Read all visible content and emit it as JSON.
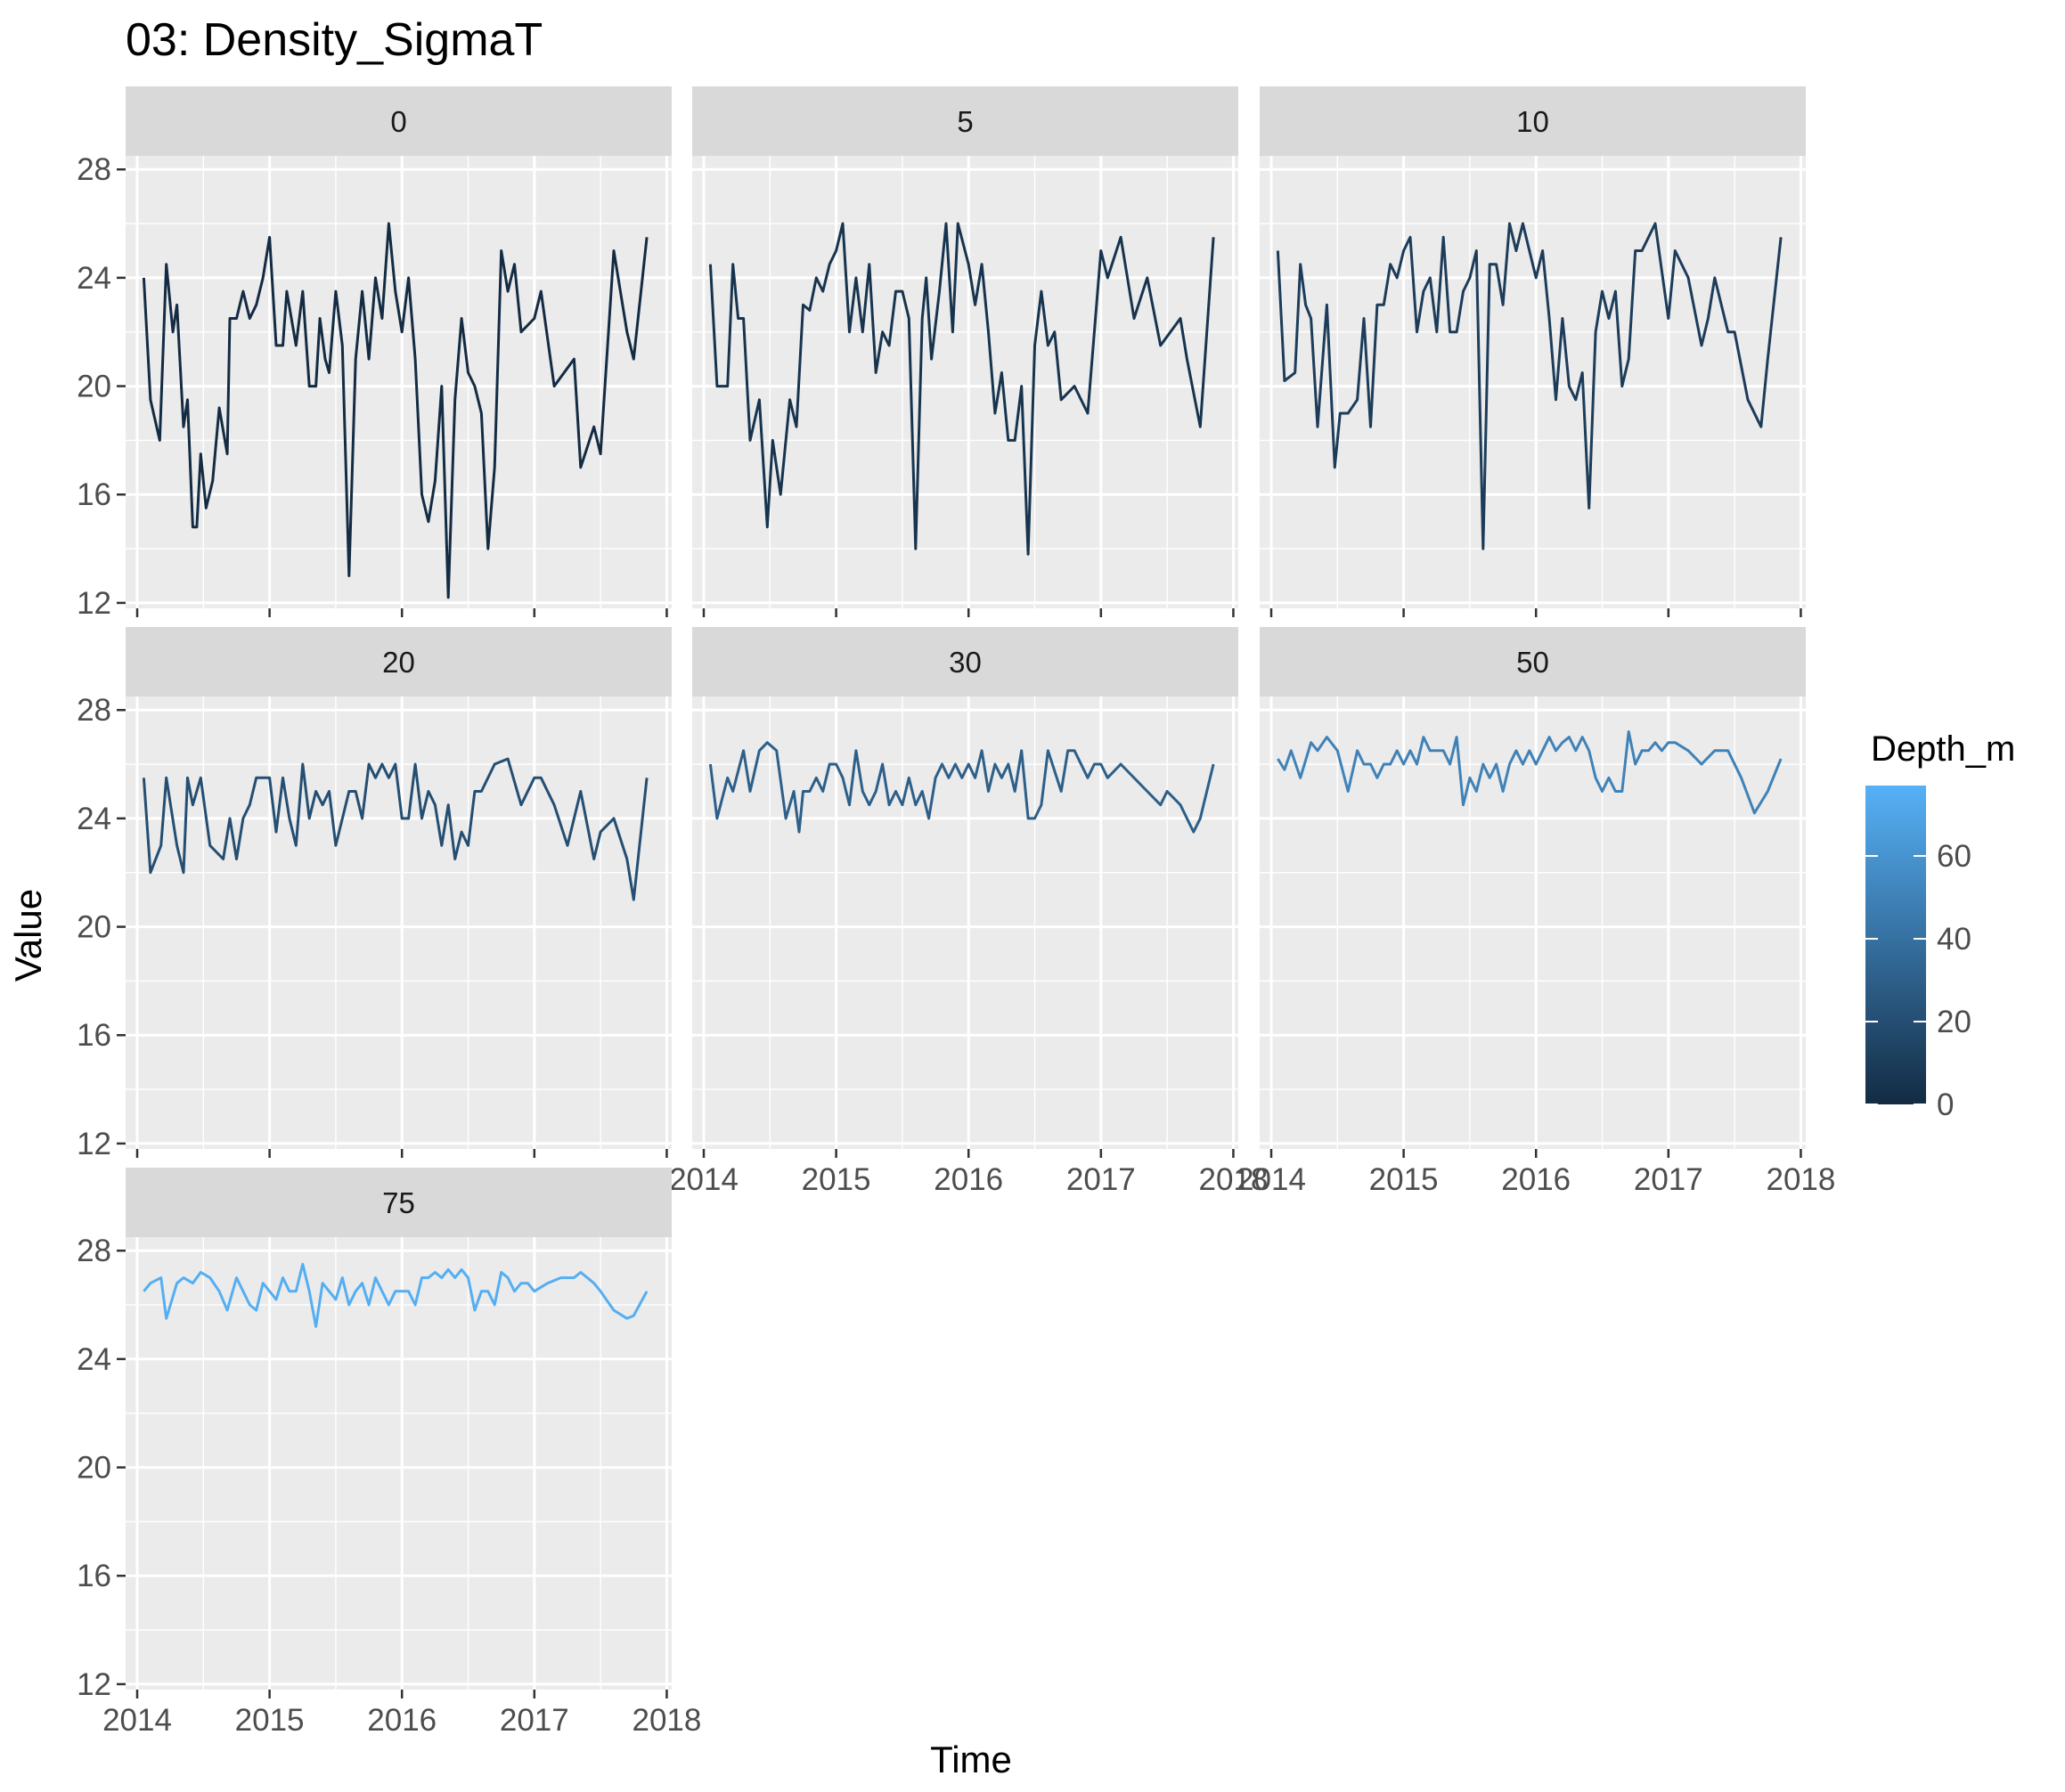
{
  "chart_data": {
    "type": "line",
    "title": "03: Density_SigmaT",
    "xlabel": "Time",
    "ylabel": "Value",
    "xlim": [
      2014.0,
      2017.95
    ],
    "ylim": [
      11.8,
      28.5
    ],
    "x_ticks": [
      2014,
      2015,
      2016,
      2017,
      2018
    ],
    "x_tick_labels": [
      "2014",
      "2015",
      "2016",
      "2017",
      "2018"
    ],
    "y_ticks": [
      12,
      16,
      20,
      24,
      28
    ],
    "y_tick_labels": [
      "12",
      "16",
      "20",
      "24",
      "28"
    ],
    "grid": true,
    "facet_variable": "Depth_m",
    "legend": {
      "title": "Depth_m",
      "type": "colorbar",
      "placement": "right",
      "range": [
        0,
        77
      ],
      "breaks": [
        0,
        20,
        40,
        60
      ],
      "break_labels": [
        "0",
        "20",
        "40",
        "60"
      ],
      "color_low": "#132b43",
      "color_high": "#56b1f7"
    },
    "panels": [
      {
        "label": "0",
        "depth": 0,
        "x": [
          2014.05,
          2014.1,
          2014.17,
          2014.22,
          2014.27,
          2014.3,
          2014.35,
          2014.38,
          2014.42,
          2014.45,
          2014.48,
          2014.52,
          2014.57,
          2014.62,
          2014.68,
          2014.7,
          2014.75,
          2014.8,
          2014.85,
          2014.9,
          2014.95,
          2015.0,
          2015.05,
          2015.1,
          2015.13,
          2015.2,
          2015.25,
          2015.3,
          2015.35,
          2015.38,
          2015.42,
          2015.45,
          2015.5,
          2015.55,
          2015.6,
          2015.65,
          2015.7,
          2015.75,
          2015.8,
          2015.85,
          2015.9,
          2015.95,
          2016.0,
          2016.05,
          2016.1,
          2016.15,
          2016.2,
          2016.25,
          2016.3,
          2016.35,
          2016.4,
          2016.45,
          2016.5,
          2016.55,
          2016.6,
          2016.65,
          2016.7,
          2016.75,
          2016.8,
          2016.85,
          2016.9,
          2017.0,
          2017.05,
          2017.15,
          2017.3,
          2017.35,
          2017.45,
          2017.5,
          2017.6,
          2017.7,
          2017.75,
          2017.85
        ],
        "y": [
          24.0,
          19.5,
          18.0,
          24.5,
          22.0,
          23.0,
          18.5,
          19.5,
          14.8,
          14.8,
          17.5,
          15.5,
          16.5,
          19.2,
          17.5,
          22.5,
          22.5,
          23.5,
          22.5,
          23.0,
          24.0,
          25.5,
          21.5,
          21.5,
          23.5,
          21.5,
          23.5,
          20.0,
          20.0,
          22.5,
          21.0,
          20.5,
          23.5,
          21.5,
          13.0,
          21.0,
          23.5,
          21.0,
          24.0,
          22.5,
          26.0,
          23.5,
          22.0,
          24.0,
          21.0,
          16.0,
          15.0,
          16.5,
          20.0,
          12.2,
          19.5,
          22.5,
          20.5,
          20.0,
          19.0,
          14.0,
          17.0,
          25.0,
          23.5,
          24.5,
          22.0,
          22.5,
          23.5,
          20.0,
          21.0,
          17.0,
          18.5,
          17.5,
          25.0,
          22.0,
          21.0,
          25.5
        ]
      },
      {
        "label": "5",
        "depth": 5,
        "x": [
          2014.05,
          2014.1,
          2014.18,
          2014.22,
          2014.26,
          2014.3,
          2014.35,
          2014.42,
          2014.48,
          2014.52,
          2014.58,
          2014.65,
          2014.7,
          2014.75,
          2014.8,
          2014.85,
          2014.9,
          2014.95,
          2015.0,
          2015.05,
          2015.1,
          2015.15,
          2015.2,
          2015.25,
          2015.3,
          2015.35,
          2015.4,
          2015.45,
          2015.5,
          2015.55,
          2015.6,
          2015.65,
          2015.68,
          2015.72,
          2015.78,
          2015.83,
          2015.88,
          2015.92,
          2016.0,
          2016.05,
          2016.1,
          2016.15,
          2016.2,
          2016.25,
          2016.3,
          2016.35,
          2016.4,
          2016.45,
          2016.5,
          2016.55,
          2016.6,
          2016.65,
          2016.7,
          2016.8,
          2016.9,
          2017.0,
          2017.05,
          2017.15,
          2017.25,
          2017.35,
          2017.45,
          2017.6,
          2017.65,
          2017.75,
          2017.85
        ],
        "y": [
          24.5,
          20.0,
          20.0,
          24.5,
          22.5,
          22.5,
          18.0,
          19.5,
          14.8,
          18.0,
          16.0,
          19.5,
          18.5,
          23.0,
          22.8,
          24.0,
          23.5,
          24.5,
          25.0,
          26.0,
          22.0,
          24.0,
          22.0,
          24.5,
          20.5,
          22.0,
          21.5,
          23.5,
          23.5,
          22.5,
          14.0,
          22.5,
          24.0,
          21.0,
          23.5,
          26.0,
          22.0,
          26.0,
          24.5,
          23.0,
          24.5,
          22.0,
          19.0,
          20.5,
          18.0,
          18.0,
          20.0,
          13.8,
          21.5,
          23.5,
          21.5,
          22.0,
          19.5,
          20.0,
          19.0,
          25.0,
          24.0,
          25.5,
          22.5,
          24.0,
          21.5,
          22.5,
          21.0,
          18.5,
          25.5
        ]
      },
      {
        "label": "10",
        "depth": 10,
        "x": [
          2014.05,
          2014.1,
          2014.18,
          2014.22,
          2014.26,
          2014.3,
          2014.35,
          2014.42,
          2014.48,
          2014.52,
          2014.58,
          2014.65,
          2014.7,
          2014.75,
          2014.8,
          2014.85,
          2014.9,
          2014.95,
          2015.0,
          2015.05,
          2015.1,
          2015.15,
          2015.2,
          2015.25,
          2015.3,
          2015.35,
          2015.4,
          2015.45,
          2015.5,
          2015.55,
          2015.6,
          2015.65,
          2015.7,
          2015.75,
          2015.8,
          2015.85,
          2015.9,
          2015.95,
          2016.0,
          2016.05,
          2016.1,
          2016.15,
          2016.2,
          2016.25,
          2016.3,
          2016.35,
          2016.4,
          2016.45,
          2016.5,
          2016.55,
          2016.6,
          2016.65,
          2016.7,
          2016.75,
          2016.8,
          2016.9,
          2017.0,
          2017.05,
          2017.15,
          2017.25,
          2017.3,
          2017.35,
          2017.45,
          2017.5,
          2017.6,
          2017.7,
          2017.75,
          2017.85
        ],
        "y": [
          25.0,
          20.2,
          20.5,
          24.5,
          23.0,
          22.5,
          18.5,
          23.0,
          17.0,
          19.0,
          19.0,
          19.5,
          22.5,
          18.5,
          23.0,
          23.0,
          24.5,
          24.0,
          25.0,
          25.5,
          22.0,
          23.5,
          24.0,
          22.0,
          25.5,
          22.0,
          22.0,
          23.5,
          24.0,
          25.0,
          14.0,
          24.5,
          24.5,
          23.0,
          26.0,
          25.0,
          26.0,
          25.0,
          24.0,
          25.0,
          22.5,
          19.5,
          22.5,
          20.0,
          19.5,
          20.5,
          15.5,
          22.0,
          23.5,
          22.5,
          23.5,
          20.0,
          21.0,
          25.0,
          25.0,
          26.0,
          22.5,
          25.0,
          24.0,
          21.5,
          22.5,
          24.0,
          22.0,
          22.0,
          19.5,
          18.5,
          21.0,
          25.5
        ]
      },
      {
        "label": "20",
        "depth": 20,
        "x": [
          2014.05,
          2014.1,
          2014.18,
          2014.22,
          2014.3,
          2014.35,
          2014.38,
          2014.42,
          2014.48,
          2014.55,
          2014.65,
          2014.7,
          2014.75,
          2014.8,
          2014.85,
          2014.9,
          2014.95,
          2015.0,
          2015.05,
          2015.1,
          2015.15,
          2015.2,
          2015.25,
          2015.3,
          2015.35,
          2015.4,
          2015.45,
          2015.5,
          2015.6,
          2015.65,
          2015.7,
          2015.75,
          2015.8,
          2015.85,
          2015.9,
          2015.95,
          2016.0,
          2016.05,
          2016.1,
          2016.15,
          2016.2,
          2016.25,
          2016.3,
          2016.35,
          2016.4,
          2016.45,
          2016.5,
          2016.55,
          2016.6,
          2016.7,
          2016.8,
          2016.9,
          2017.0,
          2017.05,
          2017.15,
          2017.25,
          2017.35,
          2017.45,
          2017.5,
          2017.6,
          2017.7,
          2017.75,
          2017.85
        ],
        "y": [
          25.5,
          22.0,
          23.0,
          25.5,
          23.0,
          22.0,
          25.5,
          24.5,
          25.5,
          23.0,
          22.5,
          24.0,
          22.5,
          24.0,
          24.5,
          25.5,
          25.5,
          25.5,
          23.5,
          25.5,
          24.0,
          23.0,
          26.0,
          24.0,
          25.0,
          24.5,
          25.0,
          23.0,
          25.0,
          25.0,
          24.0,
          26.0,
          25.5,
          26.0,
          25.5,
          26.0,
          24.0,
          24.0,
          26.0,
          24.0,
          25.0,
          24.5,
          23.0,
          24.5,
          22.5,
          23.5,
          23.0,
          25.0,
          25.0,
          26.0,
          26.2,
          24.5,
          25.5,
          25.5,
          24.5,
          23.0,
          25.0,
          22.5,
          23.5,
          24.0,
          22.5,
          21.0,
          25.5
        ]
      },
      {
        "label": "30",
        "depth": 30,
        "x": [
          2014.05,
          2014.1,
          2014.18,
          2014.22,
          2014.3,
          2014.35,
          2014.42,
          2014.48,
          2014.55,
          2014.62,
          2014.68,
          2014.72,
          2014.75,
          2014.8,
          2014.85,
          2014.9,
          2014.95,
          2015.0,
          2015.05,
          2015.1,
          2015.15,
          2015.2,
          2015.25,
          2015.3,
          2015.35,
          2015.4,
          2015.45,
          2015.5,
          2015.55,
          2015.6,
          2015.65,
          2015.7,
          2015.75,
          2015.8,
          2015.85,
          2015.9,
          2015.95,
          2016.0,
          2016.05,
          2016.1,
          2016.15,
          2016.2,
          2016.25,
          2016.3,
          2016.35,
          2016.4,
          2016.45,
          2016.5,
          2016.55,
          2016.6,
          2016.7,
          2016.75,
          2016.8,
          2016.9,
          2016.95,
          2017.0,
          2017.05,
          2017.15,
          2017.25,
          2017.35,
          2017.45,
          2017.5,
          2017.6,
          2017.7,
          2017.75,
          2017.85
        ],
        "y": [
          26.0,
          24.0,
          25.5,
          25.0,
          26.5,
          25.0,
          26.5,
          26.8,
          26.5,
          24.0,
          25.0,
          23.5,
          25.0,
          25.0,
          25.5,
          25.0,
          26.0,
          26.0,
          25.5,
          24.5,
          26.5,
          25.0,
          24.5,
          25.0,
          26.0,
          24.5,
          25.0,
          24.5,
          25.5,
          24.5,
          25.0,
          24.0,
          25.5,
          26.0,
          25.5,
          26.0,
          25.5,
          26.0,
          25.5,
          26.5,
          25.0,
          26.0,
          25.5,
          26.0,
          25.0,
          26.5,
          24.0,
          24.0,
          24.5,
          26.5,
          25.0,
          26.5,
          26.5,
          25.5,
          26.0,
          26.0,
          25.5,
          26.0,
          25.5,
          25.0,
          24.5,
          25.0,
          24.5,
          23.5,
          24.0,
          26.0
        ]
      },
      {
        "label": "50",
        "depth": 50,
        "x": [
          2014.05,
          2014.1,
          2014.15,
          2014.22,
          2014.3,
          2014.35,
          2014.42,
          2014.5,
          2014.58,
          2014.65,
          2014.7,
          2014.75,
          2014.8,
          2014.85,
          2014.9,
          2014.95,
          2015.0,
          2015.05,
          2015.1,
          2015.15,
          2015.2,
          2015.25,
          2015.3,
          2015.35,
          2015.4,
          2015.45,
          2015.5,
          2015.55,
          2015.6,
          2015.65,
          2015.7,
          2015.75,
          2015.8,
          2015.85,
          2015.9,
          2015.95,
          2016.0,
          2016.05,
          2016.1,
          2016.15,
          2016.2,
          2016.25,
          2016.3,
          2016.35,
          2016.4,
          2016.45,
          2016.5,
          2016.55,
          2016.6,
          2016.65,
          2016.7,
          2016.75,
          2016.8,
          2016.85,
          2016.9,
          2016.95,
          2017.0,
          2017.05,
          2017.15,
          2017.25,
          2017.35,
          2017.45,
          2017.55,
          2017.65,
          2017.75,
          2017.85
        ],
        "y": [
          26.2,
          25.8,
          26.5,
          25.5,
          26.8,
          26.5,
          27.0,
          26.5,
          25.0,
          26.5,
          26.0,
          26.0,
          25.5,
          26.0,
          26.0,
          26.5,
          26.0,
          26.5,
          26.0,
          27.0,
          26.5,
          26.5,
          26.5,
          26.0,
          27.0,
          24.5,
          25.5,
          25.0,
          26.0,
          25.5,
          26.0,
          25.0,
          26.0,
          26.5,
          26.0,
          26.5,
          26.0,
          26.5,
          27.0,
          26.5,
          26.8,
          27.0,
          26.5,
          27.0,
          26.5,
          25.5,
          25.0,
          25.5,
          25.0,
          25.0,
          27.2,
          26.0,
          26.5,
          26.5,
          26.8,
          26.5,
          26.8,
          26.8,
          26.5,
          26.0,
          26.5,
          26.5,
          25.5,
          24.2,
          25.0,
          26.2
        ]
      },
      {
        "label": "75",
        "depth": 75,
        "x": [
          2014.05,
          2014.1,
          2014.18,
          2014.22,
          2014.3,
          2014.35,
          2014.42,
          2014.48,
          2014.55,
          2014.62,
          2014.68,
          2014.75,
          2014.8,
          2014.85,
          2014.9,
          2014.95,
          2015.0,
          2015.05,
          2015.1,
          2015.15,
          2015.2,
          2015.25,
          2015.3,
          2015.35,
          2015.4,
          2015.45,
          2015.5,
          2015.55,
          2015.6,
          2015.65,
          2015.7,
          2015.75,
          2015.8,
          2015.85,
          2015.9,
          2015.95,
          2016.0,
          2016.05,
          2016.1,
          2016.15,
          2016.2,
          2016.25,
          2016.3,
          2016.35,
          2016.4,
          2016.45,
          2016.5,
          2016.55,
          2016.6,
          2016.65,
          2016.7,
          2016.75,
          2016.8,
          2016.85,
          2016.9,
          2016.95,
          2017.0,
          2017.1,
          2017.2,
          2017.3,
          2017.35,
          2017.45,
          2017.5,
          2017.6,
          2017.7,
          2017.75,
          2017.85
        ],
        "y": [
          26.5,
          26.8,
          27.0,
          25.5,
          26.8,
          27.0,
          26.8,
          27.2,
          27.0,
          26.5,
          25.8,
          27.0,
          26.5,
          26.0,
          25.8,
          26.8,
          26.5,
          26.2,
          27.0,
          26.5,
          26.5,
          27.5,
          26.5,
          25.2,
          26.8,
          26.5,
          26.2,
          27.0,
          26.0,
          26.5,
          26.8,
          26.0,
          27.0,
          26.5,
          26.0,
          26.5,
          26.5,
          26.5,
          26.0,
          27.0,
          27.0,
          27.2,
          27.0,
          27.3,
          27.0,
          27.3,
          27.0,
          25.8,
          26.5,
          26.5,
          26.0,
          27.2,
          27.0,
          26.5,
          26.8,
          26.8,
          26.5,
          26.8,
          27.0,
          27.0,
          27.2,
          26.8,
          26.5,
          25.8,
          25.5,
          25.6,
          26.5
        ]
      }
    ]
  }
}
